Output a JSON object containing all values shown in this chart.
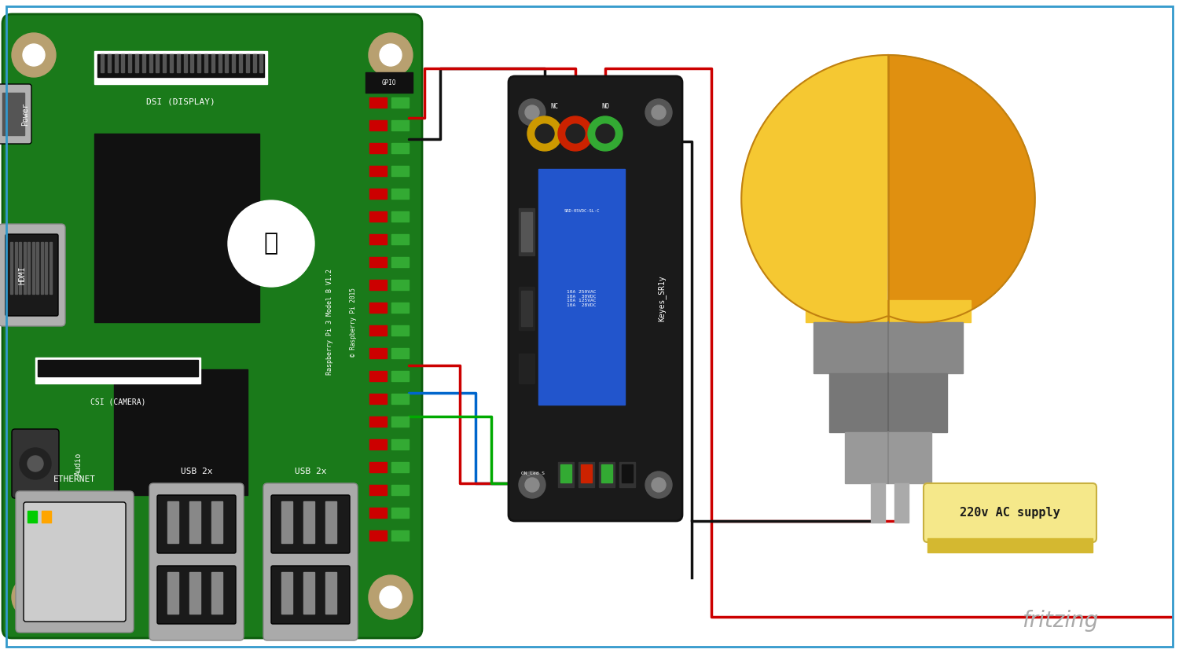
{
  "bg_color": "#ffffff",
  "border_color": "#3399cc",
  "board_color": "#1a7a1a",
  "board_border": "#0d5c0d",
  "hole_color": "#b8a070",
  "chip_color": "#111111",
  "relay_body_color": "#1a1a1a",
  "relay_pcb_color": "#2255cc",
  "relay_label": "Keyes_SR1y",
  "relay_model": "SRD-05VDC-SL-C",
  "relay_specs": [
    "10A 250VAC",
    "10A  30VDC",
    "10A 125VAC",
    "10A  28VDC"
  ],
  "bulb_left_color": "#f5c832",
  "bulb_right_color": "#e09010",
  "bulb_line_color": "#c08010",
  "socket_color1": "#888888",
  "socket_color2": "#666666",
  "socket_color3": "#999999",
  "socket_color4": "#aaaaaa",
  "wire_red": "#cc0000",
  "wire_black": "#111111",
  "wire_blue": "#0066cc",
  "wire_green": "#00aa00",
  "ac_box_color": "#f5e88a",
  "ac_box_border": "#c8b040",
  "ac_label": "220v AC supply",
  "fritzing_color": "#aaaaaa",
  "fritzing_text": "fritzing",
  "dsi_label": "DSI (DISPLAY)",
  "gpio_label": "GPIO",
  "power_label": "Power",
  "hdmi_label": "HDMI",
  "csi_label": "CSI (CAMERA)",
  "audio_label": "Audio",
  "eth_label": "ETHERNET",
  "usb1_label": "USB 2x",
  "usb2_label": "USB 2x",
  "pi_model": "Raspberry Pi 3 Model B V1.2",
  "pi_copy": "© Raspberry Pi 2015",
  "relay_nc": "NC",
  "relay_no": "NO",
  "relay_on": "ON_Led S"
}
